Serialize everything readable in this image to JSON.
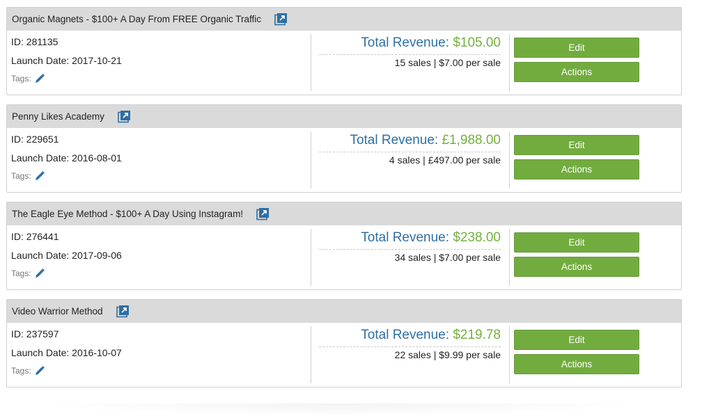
{
  "labels": {
    "id_prefix": "ID: ",
    "launch_prefix": "Launch Date: ",
    "tags": "Tags:",
    "total_revenue": "Total Revenue: ",
    "sales_word": " sales | ",
    "per_sale": " per sale",
    "edit": "Edit",
    "actions": "Actions"
  },
  "colors": {
    "header_bg": "#dadada",
    "revenue_label": "#2f6fa3",
    "revenue_amount": "#72b13d",
    "button_green": "#72ac3f",
    "icon_blue": "#2f6fa3"
  },
  "products": [
    {
      "title": "Organic Magnets - $100+ A Day From FREE Organic Traffic",
      "id": "281135",
      "launch_date": "2017-10-21",
      "revenue": "$105.00",
      "sales": "15",
      "per_sale": "$7.00"
    },
    {
      "title": "Penny Likes Academy",
      "id": "229651",
      "launch_date": "2016-08-01",
      "revenue": "£1,988.00",
      "sales": "4",
      "per_sale": "£497.00"
    },
    {
      "title": "The Eagle Eye Method - $100+ A Day Using Instagram!",
      "id": "276441",
      "launch_date": "2017-09-06",
      "revenue": "$238.00",
      "sales": "34",
      "per_sale": "$7.00"
    },
    {
      "title": "Video Warrior Method",
      "id": "237597",
      "launch_date": "2016-10-07",
      "revenue": "$219.78",
      "sales": "22",
      "per_sale": "$9.99"
    }
  ]
}
